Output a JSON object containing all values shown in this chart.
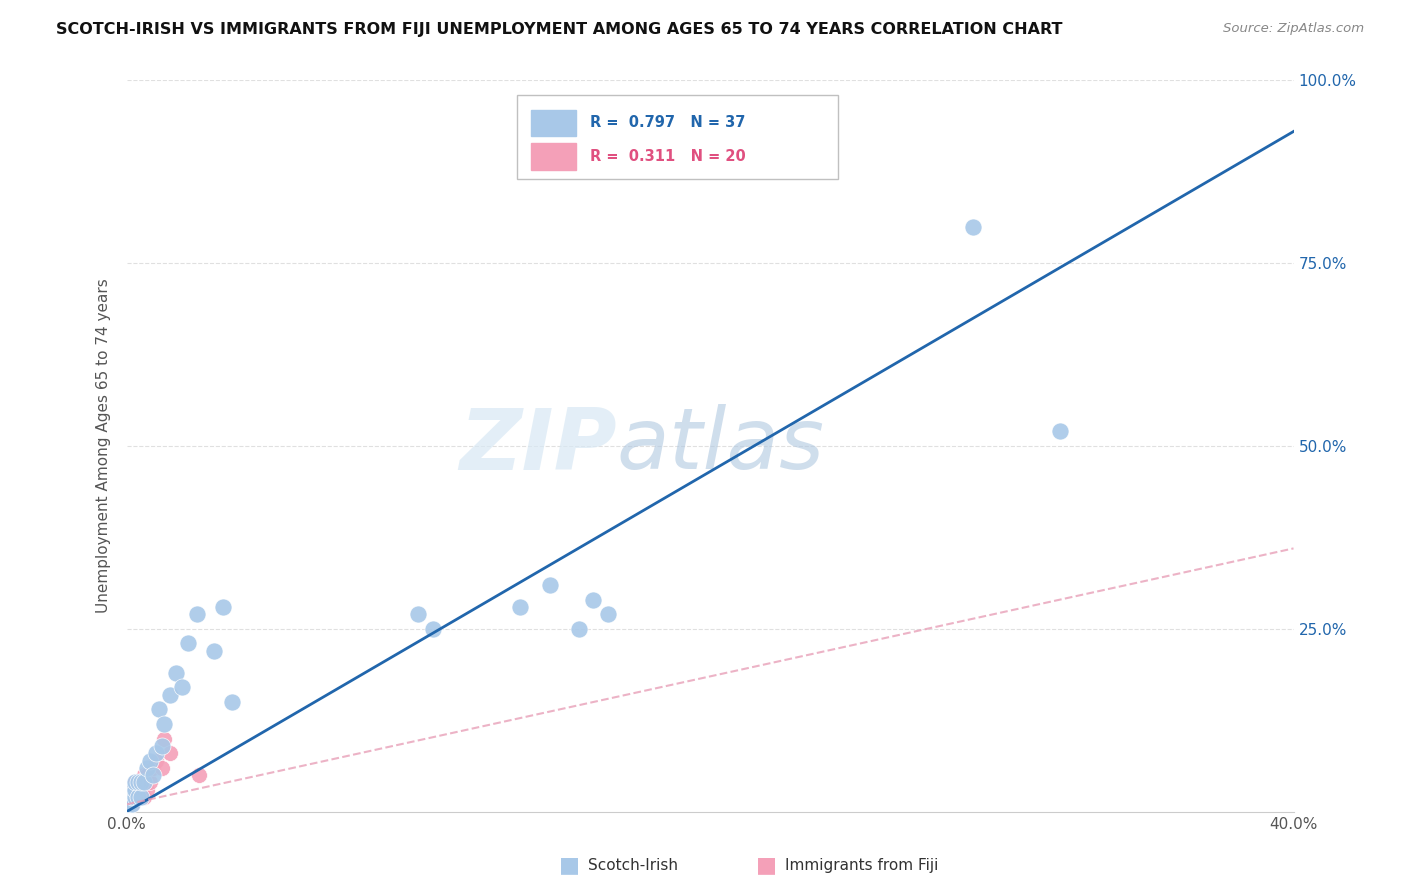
{
  "title": "SCOTCH-IRISH VS IMMIGRANTS FROM FIJI UNEMPLOYMENT AMONG AGES 65 TO 74 YEARS CORRELATION CHART",
  "source": "Source: ZipAtlas.com",
  "ylabel": "Unemployment Among Ages 65 to 74 years",
  "xlim": [
    0.0,
    0.4
  ],
  "ylim": [
    0.0,
    1.0
  ],
  "xticks": [
    0.0,
    0.05,
    0.1,
    0.15,
    0.2,
    0.25,
    0.3,
    0.35,
    0.4
  ],
  "yticks": [
    0.0,
    0.25,
    0.5,
    0.75,
    1.0
  ],
  "yticklabels_right": [
    "",
    "25.0%",
    "50.0%",
    "75.0%",
    "100.0%"
  ],
  "scotch_irish_R": 0.797,
  "scotch_irish_N": 37,
  "fiji_R": 0.311,
  "fiji_N": 20,
  "scotch_irish_color": "#A8C8E8",
  "fiji_color": "#F4A0B8",
  "trend_scotch_color": "#2166AC",
  "trend_fiji_color": "#E8A0B8",
  "background_color": "#FFFFFF",
  "grid_color": "#E0E0E0",
  "watermark_zip": "ZIP",
  "watermark_atlas": "atlas",
  "scotch_irish_x": [
    0.001,
    0.001,
    0.002,
    0.002,
    0.002,
    0.003,
    0.003,
    0.003,
    0.004,
    0.004,
    0.005,
    0.005,
    0.006,
    0.007,
    0.008,
    0.009,
    0.01,
    0.011,
    0.012,
    0.013,
    0.015,
    0.017,
    0.019,
    0.021,
    0.024,
    0.03,
    0.033,
    0.036,
    0.1,
    0.105,
    0.135,
    0.145,
    0.155,
    0.16,
    0.165,
    0.29,
    0.32
  ],
  "scotch_irish_y": [
    0.01,
    0.02,
    0.01,
    0.02,
    0.03,
    0.02,
    0.03,
    0.04,
    0.02,
    0.04,
    0.02,
    0.04,
    0.04,
    0.06,
    0.07,
    0.05,
    0.08,
    0.14,
    0.09,
    0.12,
    0.16,
    0.19,
    0.17,
    0.23,
    0.27,
    0.22,
    0.28,
    0.15,
    0.27,
    0.25,
    0.28,
    0.31,
    0.25,
    0.29,
    0.27,
    0.8,
    0.52
  ],
  "fiji_x": [
    0.001,
    0.001,
    0.002,
    0.002,
    0.003,
    0.003,
    0.004,
    0.004,
    0.005,
    0.006,
    0.006,
    0.007,
    0.007,
    0.008,
    0.009,
    0.01,
    0.012,
    0.013,
    0.015,
    0.025
  ],
  "fiji_y": [
    0.01,
    0.02,
    0.01,
    0.03,
    0.02,
    0.04,
    0.02,
    0.04,
    0.03,
    0.02,
    0.05,
    0.03,
    0.05,
    0.04,
    0.06,
    0.07,
    0.06,
    0.1,
    0.08,
    0.05
  ],
  "scotch_line_x": [
    0.0,
    0.4
  ],
  "scotch_line_y": [
    0.0,
    0.93
  ],
  "fiji_line_x": [
    0.0,
    0.4
  ],
  "fiji_line_y": [
    0.01,
    0.36
  ],
  "legend_scotch_label": "Scotch-Irish",
  "legend_fiji_label": "Immigrants from Fiji"
}
